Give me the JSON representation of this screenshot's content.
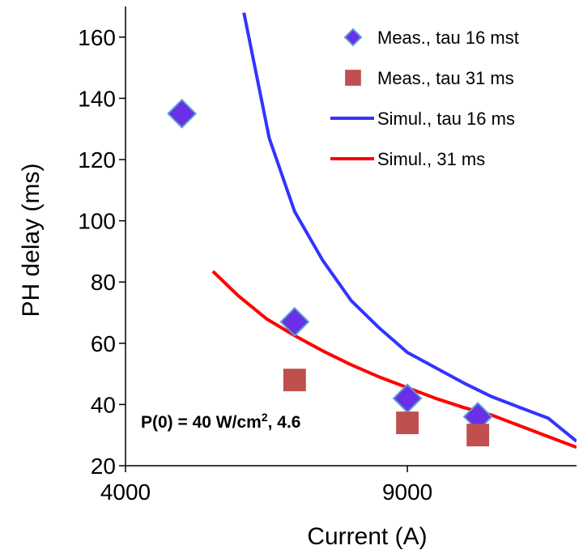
{
  "chart_data": {
    "type": "scatter",
    "xlabel": "Current (A)",
    "ylabel": "PH delay (ms)",
    "xlim": [
      4000,
      12000
    ],
    "ylim": [
      20,
      170
    ],
    "xticks": [
      4000,
      9000
    ],
    "yticks": [
      20,
      40,
      60,
      80,
      100,
      120,
      140,
      160
    ],
    "grid": false,
    "legend_position": "top-right",
    "annotation": {
      "prefix": "P(0) = 40 W/cm",
      "sup": "2",
      "suffix": ", 4.6"
    },
    "series": [
      {
        "name": "Meas., tau 16 mst",
        "kind": "scatter",
        "marker": "diamond",
        "color": "#6a2fe6",
        "x": [
          5000,
          7000,
          9000,
          10250
        ],
        "y": [
          135,
          67,
          42,
          36
        ]
      },
      {
        "name": "Meas., tau 31 ms",
        "kind": "scatter",
        "marker": "square",
        "color": "#c0504d",
        "x": [
          7000,
          9000,
          10250
        ],
        "y": [
          48,
          34,
          30
        ]
      },
      {
        "name": "Simul., tau 16 ms",
        "kind": "line",
        "color": "#3333ff",
        "x": [
          6100,
          6550,
          7000,
          7500,
          8000,
          8500,
          9000,
          9500,
          10000,
          10500,
          11000,
          11500,
          12000
        ],
        "y": [
          168,
          127,
          103,
          87,
          74,
          65,
          57,
          52,
          47,
          42.5,
          39,
          35.5,
          28
        ]
      },
      {
        "name": "Simul., 31 ms",
        "kind": "line",
        "color": "#ff0000",
        "x": [
          5550,
          6000,
          6500,
          7000,
          7500,
          8000,
          8500,
          9000,
          9500,
          10000,
          10500,
          11000,
          11500,
          12000
        ],
        "y": [
          83.5,
          75.5,
          68,
          62.5,
          57.5,
          53,
          49,
          45.5,
          42,
          39,
          36.5,
          33,
          29.5,
          26
        ]
      }
    ]
  }
}
